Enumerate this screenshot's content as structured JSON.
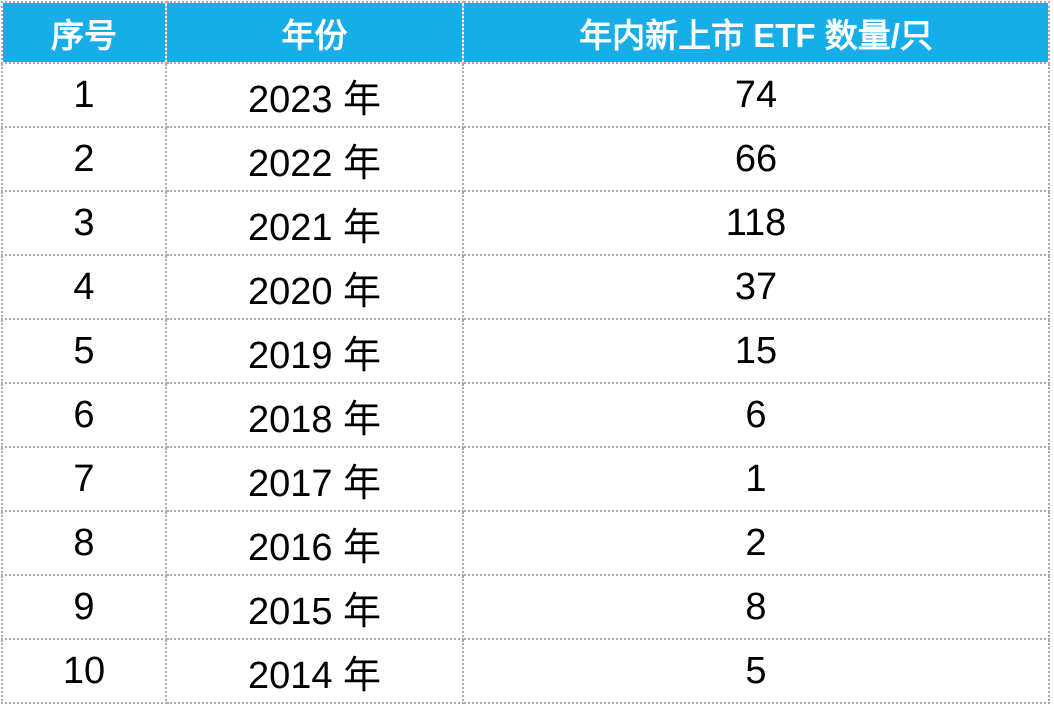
{
  "chart_data": {
    "type": "table",
    "columns": [
      "序号",
      "年份",
      "年内新上市 ETF 数量/只"
    ],
    "rows": [
      [
        "1",
        "2023 年",
        "74"
      ],
      [
        "2",
        "2022 年",
        "66"
      ],
      [
        "3",
        "2021 年",
        "118"
      ],
      [
        "4",
        "2020 年",
        "37"
      ],
      [
        "5",
        "2019 年",
        "15"
      ],
      [
        "6",
        "2018 年",
        "6"
      ],
      [
        "7",
        "2017 年",
        "1"
      ],
      [
        "8",
        "2016 年",
        "2"
      ],
      [
        "9",
        "2015 年",
        "8"
      ],
      [
        "10",
        "2014 年",
        "5"
      ]
    ]
  },
  "style": {
    "header_bg": "#17ADE9",
    "header_text": "#FFFFFF",
    "border_color": "#ACACAC",
    "body_text": "#000000"
  }
}
